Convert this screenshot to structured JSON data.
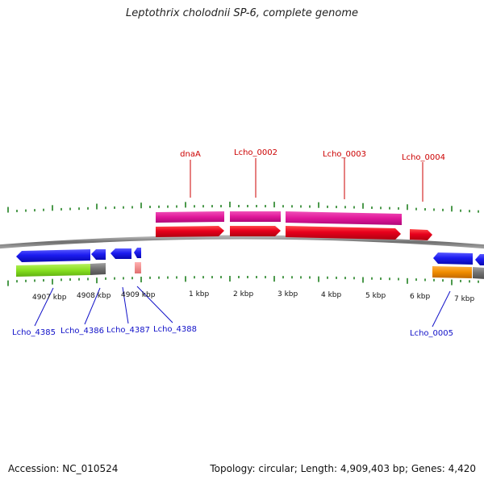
{
  "title": "Leptothrix cholodnii SP-6, complete genome",
  "footer": {
    "accession": "Accession: NC_010524",
    "summary": "Topology: circular; Length: 4,909,403 bp; Genes: 4,420"
  },
  "kbp_labels": [
    "4907 kbp",
    "4908 kbp",
    "4909 kbp",
    "1 kbp",
    "2 kbp",
    "3 kbp",
    "4 kbp",
    "5 kbp",
    "6 kbp",
    "7 kbp"
  ],
  "gene_labels_top": [
    "dnaA",
    "Lcho_0002",
    "Lcho_0003",
    "Lcho_0004"
  ],
  "gene_labels_bottom": [
    "Lcho_4385",
    "Lcho_4386",
    "Lcho_4387",
    "Lcho_4388",
    "Lcho_0005"
  ],
  "colors": {
    "forward_cds": "#e8001c",
    "forward_gene": "#e0189a",
    "reverse_cds": "#1c1cf0",
    "reverse_gene_a": "#88e020",
    "reverse_gene_b": "#f08c00",
    "pseudo": "#f08888",
    "backbone": "#808080",
    "ticks": "#208020",
    "top_label": "#cc0000",
    "bottom_label": "#1010c8"
  }
}
